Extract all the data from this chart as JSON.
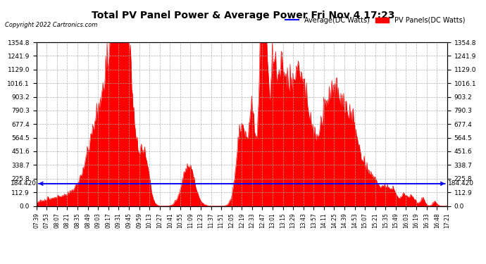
{
  "title": "Total PV Panel Power & Average Power Fri Nov 4 17:23",
  "copyright": "Copyright 2022 Cartronics.com",
  "legend_avg": "Average(DC Watts)",
  "legend_pv": "PV Panels(DC Watts)",
  "average_value": 184.42,
  "y_max": 1354.8,
  "y_ticks": [
    0.0,
    112.9,
    225.8,
    338.7,
    451.6,
    564.5,
    677.4,
    790.3,
    903.2,
    1016.1,
    1129.0,
    1241.9,
    1354.8
  ],
  "avg_label": "184.420",
  "background_color": "#ffffff",
  "fill_color": "#ff0000",
  "line_color": "#ff0000",
  "avg_line_color": "#0000ff",
  "grid_color": "#aaaaaa",
  "title_color": "#000000",
  "x_tick_labels": [
    "07:39",
    "07:53",
    "08:07",
    "08:21",
    "08:35",
    "08:49",
    "09:03",
    "09:17",
    "09:31",
    "09:45",
    "09:59",
    "10:13",
    "10:27",
    "10:41",
    "10:55",
    "11:09",
    "11:23",
    "11:37",
    "11:51",
    "12:05",
    "12:19",
    "12:33",
    "12:47",
    "13:01",
    "13:15",
    "13:29",
    "13:43",
    "13:57",
    "14:11",
    "14:25",
    "14:39",
    "14:53",
    "15:07",
    "15:21",
    "15:35",
    "15:49",
    "16:03",
    "16:19",
    "16:33",
    "16:48",
    "17:21"
  ],
  "num_points": 600
}
